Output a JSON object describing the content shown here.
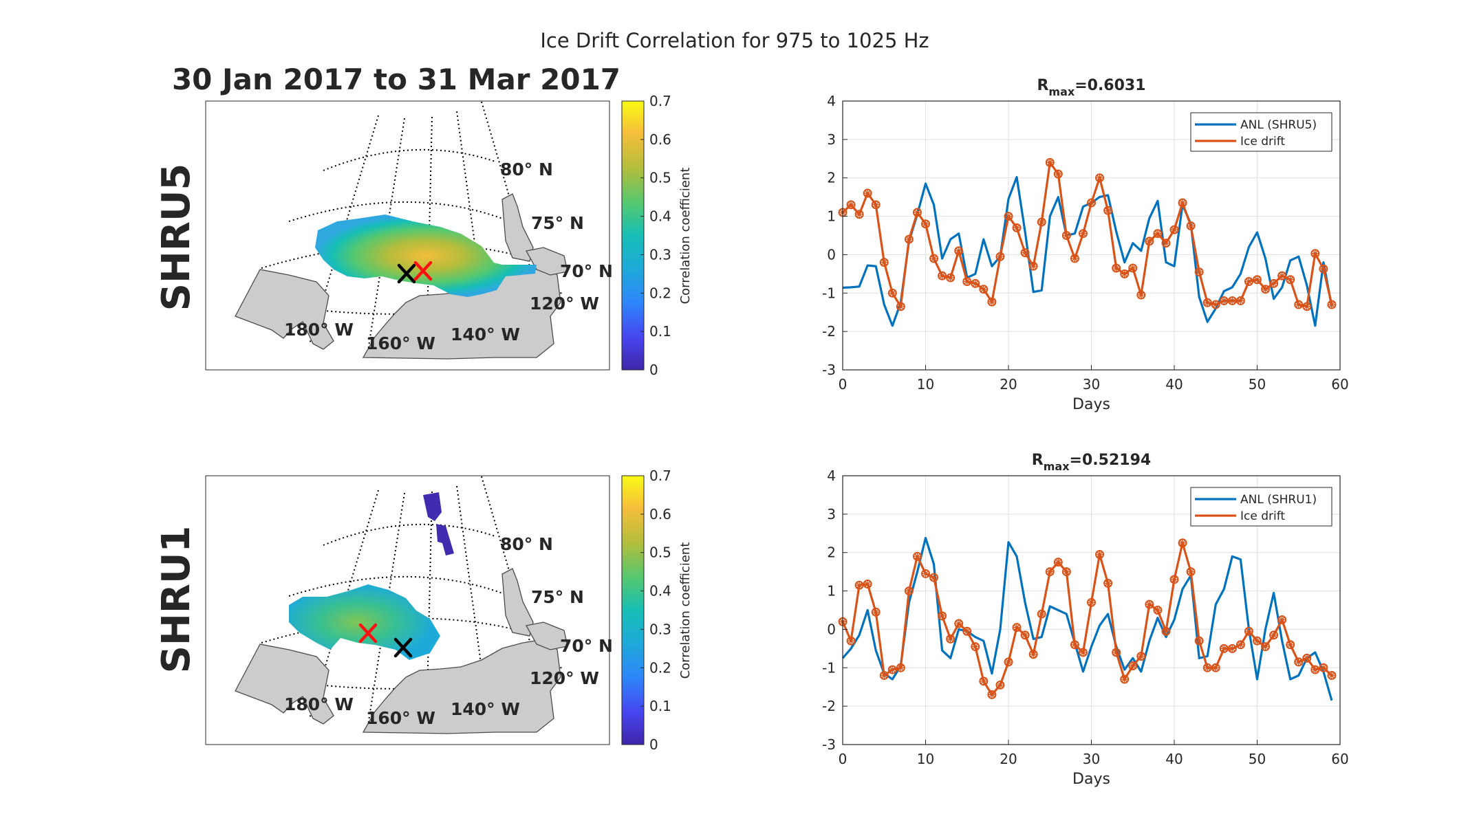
{
  "figure": {
    "suptitle": "Ice Drift Correlation for 975 to 1025 Hz",
    "date_range": "30 Jan 2017 to 31 Mar 2017"
  },
  "maps": [
    {
      "row_label": "SHRU5",
      "colorbar": {
        "label": "Correlation coefficient",
        "range": [
          0,
          0.7
        ],
        "ticks": [
          "0",
          "0.1",
          "0.2",
          "0.3",
          "0.4",
          "0.5",
          "0.6",
          "0.7"
        ],
        "colormap": "parula"
      },
      "lat_labels": [
        "80° N",
        "75° N",
        "70° N"
      ],
      "lon_labels": [
        "180° W",
        "160° W",
        "140° W",
        "120° W"
      ],
      "markers": [
        "black-x",
        "red-x"
      ],
      "land_color": "#cccccc"
    },
    {
      "row_label": "SHRU1",
      "colorbar": {
        "label": "Correlation coefficient",
        "range": [
          0,
          0.7
        ],
        "ticks": [
          "0",
          "0.1",
          "0.2",
          "0.3",
          "0.4",
          "0.5",
          "0.6",
          "0.7"
        ],
        "colormap": "parula"
      },
      "lat_labels": [
        "80° N",
        "75° N",
        "70° N"
      ],
      "lon_labels": [
        "180° W",
        "160° W",
        "140° W",
        "120° W"
      ],
      "markers": [
        "black-x",
        "red-x"
      ],
      "land_color": "#cccccc"
    }
  ],
  "chart_data": [
    {
      "type": "line",
      "title": "R_max=0.6031",
      "title_main": "R",
      "title_sub": "max",
      "title_rest": "=0.6031",
      "xlabel": "Days",
      "ylabel": "",
      "xlim": [
        0,
        60
      ],
      "ylim": [
        -3,
        4
      ],
      "xticks": [
        0,
        10,
        20,
        30,
        40,
        50,
        60
      ],
      "yticks": [
        -3,
        -2,
        -1,
        0,
        1,
        2,
        3,
        4
      ],
      "grid": true,
      "legend_position": "top-right",
      "x": [
        0,
        1,
        2,
        3,
        4,
        5,
        6,
        7,
        8,
        9,
        10,
        11,
        12,
        13,
        14,
        15,
        16,
        17,
        18,
        19,
        20,
        21,
        22,
        23,
        24,
        25,
        26,
        27,
        28,
        29,
        30,
        31,
        32,
        33,
        34,
        35,
        36,
        37,
        38,
        39,
        40,
        41,
        42,
        43,
        44,
        45,
        46,
        47,
        48,
        49,
        50,
        51,
        52,
        53,
        54,
        55,
        56,
        57,
        58,
        59
      ],
      "series": [
        {
          "name": "ANL (SHRU5)",
          "color": "#0072BD",
          "markers": false,
          "values": [
            -0.86,
            -0.85,
            -0.83,
            -0.28,
            -0.3,
            -1.3,
            -1.85,
            -1.25,
            0.35,
            1.05,
            1.85,
            1.3,
            -0.1,
            0.4,
            0.55,
            -0.6,
            -0.5,
            0.4,
            -0.3,
            -0.05,
            1.45,
            2.02,
            0.6,
            -0.97,
            -0.93,
            1.0,
            1.5,
            0.5,
            0.55,
            1.25,
            1.35,
            1.5,
            1.55,
            0.6,
            -0.2,
            0.3,
            0.1,
            0.95,
            1.4,
            -0.2,
            -0.3,
            1.3,
            0.8,
            -1.1,
            -1.75,
            -1.4,
            -0.95,
            -0.85,
            -0.5,
            0.2,
            0.58,
            -0.1,
            -1.15,
            -0.85,
            -0.15,
            -0.05,
            -0.8,
            -1.85,
            -0.2,
            -1.35
          ]
        },
        {
          "name": "Ice drift",
          "color": "#D95319",
          "markers": true,
          "values": [
            1.1,
            1.3,
            1.05,
            1.6,
            1.3,
            -0.2,
            -1.0,
            -1.35,
            0.4,
            1.1,
            0.8,
            -0.1,
            -0.55,
            -0.6,
            0.1,
            -0.7,
            -0.75,
            -0.9,
            -1.23,
            -0.05,
            1.0,
            0.7,
            0.05,
            -0.3,
            0.85,
            2.4,
            2.1,
            0.5,
            -0.1,
            0.55,
            1.35,
            2.0,
            1.15,
            -0.35,
            -0.5,
            -0.35,
            -1.05,
            0.35,
            0.55,
            0.3,
            0.65,
            1.35,
            0.75,
            -0.45,
            -1.25,
            -1.3,
            -1.2,
            -1.2,
            -1.2,
            -0.7,
            -0.65,
            -0.9,
            -0.75,
            -0.55,
            -0.65,
            -1.3,
            -1.35,
            0.03,
            -0.37,
            -1.3
          ]
        }
      ]
    },
    {
      "type": "line",
      "title": "R_max=0.52194",
      "title_main": "R",
      "title_sub": "max",
      "title_rest": "=0.52194",
      "xlabel": "Days",
      "ylabel": "",
      "xlim": [
        0,
        60
      ],
      "ylim": [
        -3,
        4
      ],
      "xticks": [
        0,
        10,
        20,
        30,
        40,
        50,
        60
      ],
      "yticks": [
        -3,
        -2,
        -1,
        0,
        1,
        2,
        3,
        4
      ],
      "grid": true,
      "legend_position": "top-right",
      "x": [
        0,
        1,
        2,
        3,
        4,
        5,
        6,
        7,
        8,
        9,
        10,
        11,
        12,
        13,
        14,
        15,
        16,
        17,
        18,
        19,
        20,
        21,
        22,
        23,
        24,
        25,
        26,
        27,
        28,
        29,
        30,
        31,
        32,
        33,
        34,
        35,
        36,
        37,
        38,
        39,
        40,
        41,
        42,
        43,
        44,
        45,
        46,
        47,
        48,
        49,
        50,
        51,
        52,
        53,
        54,
        55,
        56,
        57,
        58,
        59
      ],
      "series": [
        {
          "name": "ANL (SHRU1)",
          "color": "#0072BD",
          "markers": false,
          "values": [
            -0.75,
            -0.5,
            -0.15,
            0.5,
            -0.55,
            -1.15,
            -1.3,
            -0.95,
            0.7,
            1.5,
            2.38,
            1.7,
            -0.55,
            -0.75,
            0.0,
            -0.05,
            -0.2,
            -0.3,
            -1.15,
            0.0,
            2.27,
            1.9,
            0.7,
            -0.25,
            -0.2,
            0.6,
            0.5,
            0.4,
            -0.35,
            -1.1,
            -0.45,
            0.1,
            0.4,
            -0.45,
            -1.05,
            -0.75,
            -1.1,
            -0.3,
            0.3,
            -0.2,
            0.25,
            1.05,
            1.4,
            -0.75,
            -0.7,
            0.65,
            1.05,
            1.9,
            1.82,
            0.0,
            -1.3,
            0.0,
            0.95,
            -0.3,
            -1.3,
            -1.2,
            -0.75,
            -0.6,
            -1.1,
            -1.85
          ]
        },
        {
          "name": "Ice drift",
          "color": "#D95319",
          "markers": true,
          "values": [
            0.2,
            -0.3,
            1.15,
            1.18,
            0.45,
            -1.2,
            -1.05,
            -1.0,
            1.0,
            1.9,
            1.45,
            1.35,
            0.35,
            -0.25,
            0.15,
            -0.05,
            -0.45,
            -1.35,
            -1.7,
            -1.45,
            -0.85,
            0.05,
            -0.15,
            -0.65,
            0.4,
            1.5,
            1.75,
            1.5,
            -0.4,
            -0.6,
            0.7,
            1.95,
            1.2,
            -0.6,
            -1.3,
            -0.95,
            -0.7,
            0.65,
            0.5,
            -0.05,
            1.3,
            2.25,
            1.5,
            -0.3,
            -1.0,
            -1.0,
            -0.5,
            -0.5,
            -0.4,
            -0.05,
            -0.3,
            -0.45,
            -0.15,
            0.25,
            -0.4,
            -0.85,
            -0.75,
            -1.05,
            -1.0,
            -1.2
          ]
        }
      ]
    }
  ]
}
